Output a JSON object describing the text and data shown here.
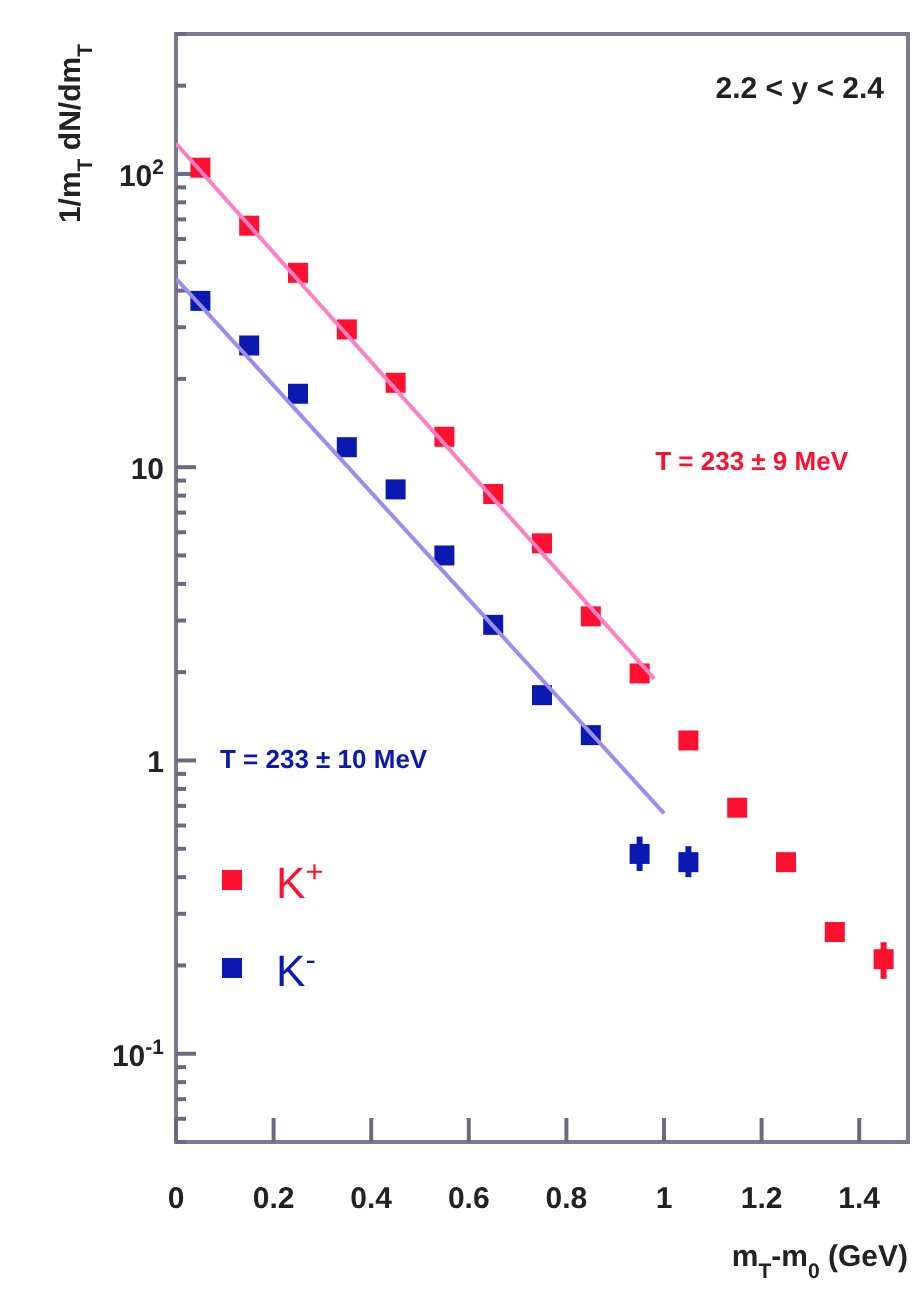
{
  "chart_data": {
    "type": "scatter",
    "xlabel": "m$_{T}$-m$_{0}$ (GeV)",
    "ylabel": "1/m$_{T}$ dN/dm$_{T}$",
    "annotations": [
      "2.2 < y < 2.4",
      "T = 233 ± 9 MeV",
      "T = 233 ± 10 MeV"
    ],
    "x": [
      0.05,
      0.15,
      0.25,
      0.35,
      0.45,
      0.55,
      0.65,
      0.75,
      0.85,
      0.95,
      1.05,
      1.15,
      1.25,
      1.35,
      1.45
    ],
    "series": [
      {
        "name": "K$^{+}$",
        "color": "#ff1030",
        "values": [
          105,
          66.6,
          46,
          29.5,
          19.4,
          12.7,
          8.1,
          5.5,
          3.1,
          1.98,
          1.17,
          0.69,
          0.45,
          0.26,
          0.21
        ],
        "errors": [
          null,
          null,
          null,
          null,
          null,
          null,
          null,
          null,
          null,
          null,
          null,
          null,
          null,
          null,
          [
            0.18,
            0.24
          ]
        ]
      },
      {
        "name": "K$^{-}$",
        "color": "#0a1ab0",
        "x": [
          0.05,
          0.15,
          0.25,
          0.35,
          0.45,
          0.55,
          0.65,
          0.75,
          0.85,
          0.95,
          1.05
        ],
        "values": [
          36.9,
          26,
          17.8,
          11.7,
          8.4,
          5.0,
          2.9,
          1.67,
          1.22,
          0.48,
          0.45
        ],
        "errors": [
          null,
          null,
          null,
          null,
          null,
          null,
          null,
          null,
          null,
          [
            0.42,
            0.55
          ],
          [
            0.4,
            0.51
          ]
        ]
      },
      {
        "type": "line",
        "marker": "none",
        "color": "#ff80c0",
        "x": [
          0,
          0.98
        ],
        "values": [
          127,
          1.9
        ]
      },
      {
        "type": "line",
        "marker": "none",
        "color": "#9a8cf0",
        "x": [
          0,
          1.0
        ],
        "values": [
          44,
          0.66
        ]
      }
    ],
    "xlim": [
      0,
      1.5
    ],
    "ylim": [
      0.05,
      300
    ],
    "log": "y",
    "marker": "square",
    "legend": "bottom left",
    "grid": false,
    "xticks": [
      0,
      0.2,
      0.4,
      0.6,
      0.8,
      1,
      1.2,
      1.4
    ],
    "yticks": [
      {
        "value": 0.05,
        "label": null
      },
      {
        "value": 0.06,
        "label": null
      },
      {
        "value": 0.07,
        "label": null
      },
      {
        "value": 0.08,
        "label": null
      },
      {
        "value": 0.09,
        "label": null
      },
      {
        "value": 0.1,
        "label": "10$^{-1}$"
      },
      {
        "value": 0.2,
        "label": null
      },
      {
        "value": 0.3,
        "label": null
      },
      {
        "value": 0.4,
        "label": null
      },
      {
        "value": 0.5,
        "label": null
      },
      {
        "value": 0.6,
        "label": null
      },
      {
        "value": 0.7,
        "label": null
      },
      {
        "value": 0.8,
        "label": null
      },
      {
        "value": 0.9,
        "label": null
      },
      {
        "value": 1,
        "label": "1"
      },
      {
        "value": 2,
        "label": null
      },
      {
        "value": 3,
        "label": null
      },
      {
        "value": 4,
        "label": null
      },
      {
        "value": 5,
        "label": null
      },
      {
        "value": 6,
        "label": null
      },
      {
        "value": 7,
        "label": null
      },
      {
        "value": 8,
        "label": null
      },
      {
        "value": 9,
        "label": null
      },
      {
        "value": 10,
        "label": "10"
      },
      {
        "value": 20,
        "label": null
      },
      {
        "value": 30,
        "label": null
      },
      {
        "value": 40,
        "label": null
      },
      {
        "value": 50,
        "label": null
      },
      {
        "value": 60,
        "label": null
      },
      {
        "value": 70,
        "label": null
      },
      {
        "value": 80,
        "label": null
      },
      {
        "value": 90,
        "label": null
      },
      {
        "value": 100,
        "label": "10$^{2}$"
      },
      {
        "value": 200,
        "label": null
      },
      {
        "value": 300,
        "label": null
      }
    ]
  }
}
